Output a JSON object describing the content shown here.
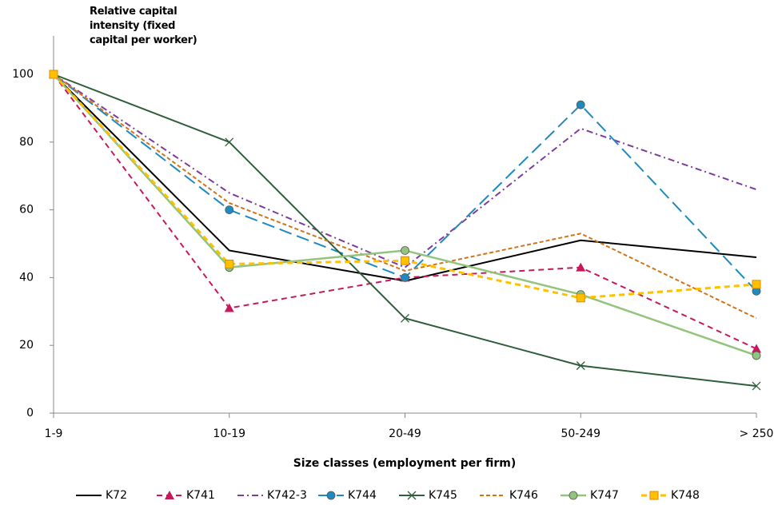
{
  "chart_data": {
    "type": "line",
    "y_label": "Relative capital intensity (fixed capital per worker)",
    "x_label": "Size classes (employment per firm)",
    "categories": [
      "1-9",
      "10-19",
      "20-49",
      "50-249",
      "> 250"
    ],
    "ylim": [
      0,
      110
    ],
    "yticks": [
      0,
      20,
      40,
      60,
      80,
      100
    ],
    "series": [
      {
        "name": "K72",
        "color": "#000000",
        "dash": "solid",
        "marker": "none",
        "values": [
          100,
          48,
          39,
          51,
          46
        ]
      },
      {
        "name": "K741",
        "color": "#c8175d",
        "dash": "dashed",
        "marker": "triangle",
        "values": [
          100,
          31,
          40,
          43,
          19
        ]
      },
      {
        "name": "K742-3",
        "color": "#7d3c98",
        "dash": "dashdot",
        "marker": "none",
        "values": [
          100,
          65,
          43,
          84,
          66
        ]
      },
      {
        "name": "K744",
        "color": "#1f8ac0",
        "dash": "longdash",
        "marker": "circle",
        "values": [
          100,
          60,
          40,
          91,
          36
        ]
      },
      {
        "name": "K745",
        "color": "#2e5e3a",
        "dash": "solid",
        "marker": "x",
        "values": [
          100,
          80,
          28,
          14,
          8
        ]
      },
      {
        "name": "K746",
        "color": "#d0741a",
        "dash": "dotted",
        "marker": "none",
        "values": [
          100,
          62,
          42,
          53,
          28
        ]
      },
      {
        "name": "K747",
        "color": "#93c47d",
        "dash": "solid",
        "marker": "circle",
        "values": [
          100,
          43,
          48,
          35,
          17
        ]
      },
      {
        "name": "K748",
        "color": "#ffc000",
        "dash": "dashed",
        "marker": "square",
        "values": [
          100,
          44,
          45,
          34,
          38
        ]
      }
    ]
  }
}
